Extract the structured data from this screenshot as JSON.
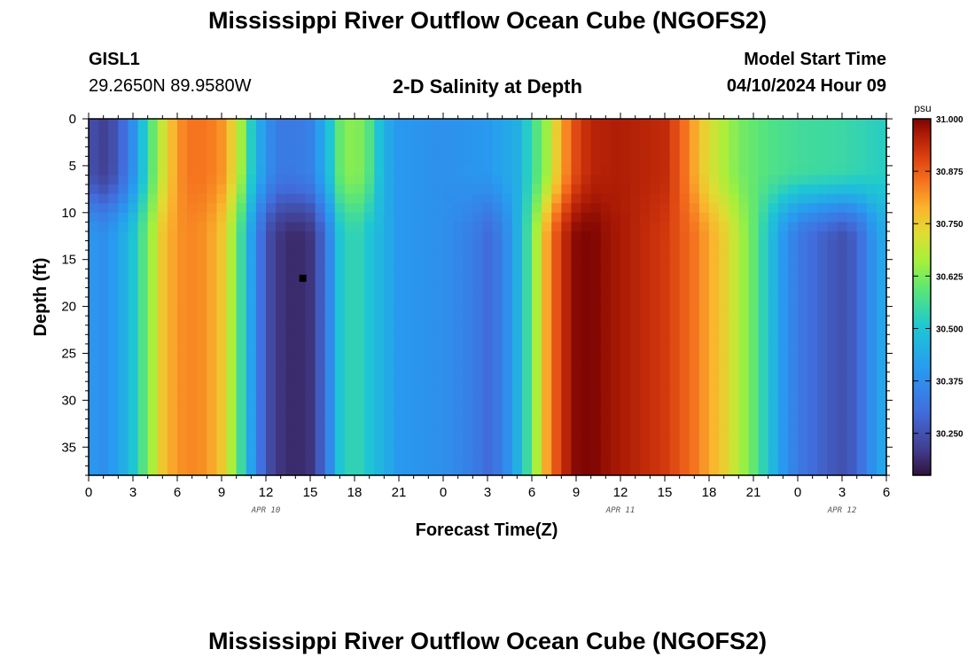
{
  "header": {
    "title": "Mississippi River Outflow Ocean Cube (NGOFS2)",
    "station": "GISL1",
    "coords": "29.2650N  89.9580W",
    "subtitle": "2-D Salinity at Depth",
    "model_start_label": "Model Start Time",
    "model_start_value": "04/10/2024 Hour 09"
  },
  "footer": {
    "title": "Mississippi River Outflow Ocean Cube (NGOFS2)"
  },
  "chart_data": {
    "type": "heatmap",
    "title": "2-D Salinity at Depth",
    "xlabel": "Forecast Time(Z)",
    "ylabel": "Depth (ft)",
    "x_range_hours": [
      0,
      54
    ],
    "ylim": [
      0,
      38
    ],
    "x_tick_labels": [
      "0",
      "3",
      "6",
      "9",
      "12",
      "15",
      "18",
      "21",
      "0",
      "3",
      "6",
      "9",
      "12",
      "15",
      "18",
      "21",
      "0",
      "3",
      "6"
    ],
    "x_tick_hours": [
      0,
      3,
      6,
      9,
      12,
      15,
      18,
      21,
      24,
      27,
      30,
      33,
      36,
      39,
      42,
      45,
      48,
      51,
      54
    ],
    "y_tick_labels": [
      "0",
      "5",
      "10",
      "15",
      "20",
      "25",
      "30",
      "35"
    ],
    "y_tick_values": [
      0,
      5,
      10,
      15,
      20,
      25,
      30,
      35
    ],
    "date_labels": [
      {
        "label": "APR 10",
        "hour": 12
      },
      {
        "label": "APR 11",
        "hour": 36
      },
      {
        "label": "APR 12",
        "hour": 51
      }
    ],
    "colorbar": {
      "unit": "psu",
      "min": 30.15,
      "max": 31.0,
      "tick_labels": [
        "31.000",
        "30.875",
        "30.750",
        "30.625",
        "30.500",
        "30.375",
        "30.250"
      ],
      "tick_values": [
        31.0,
        30.875,
        30.75,
        30.625,
        30.5,
        30.375,
        30.25
      ]
    },
    "marker": {
      "hour": 14.5,
      "depth": 17
    },
    "surface_profile": [
      {
        "hour": 0,
        "value": 30.25
      },
      {
        "hour": 1,
        "value": 30.22
      },
      {
        "hour": 2,
        "value": 30.26
      },
      {
        "hour": 3,
        "value": 30.38
      },
      {
        "hour": 4,
        "value": 30.55
      },
      {
        "hour": 5,
        "value": 30.7
      },
      {
        "hour": 6,
        "value": 30.82
      },
      {
        "hour": 7,
        "value": 30.85
      },
      {
        "hour": 8,
        "value": 30.85
      },
      {
        "hour": 9,
        "value": 30.82
      },
      {
        "hour": 10,
        "value": 30.72
      },
      {
        "hour": 11,
        "value": 30.52
      },
      {
        "hour": 12,
        "value": 30.38
      },
      {
        "hour": 13,
        "value": 30.33
      },
      {
        "hour": 14,
        "value": 30.33
      },
      {
        "hour": 15,
        "value": 30.35
      },
      {
        "hour": 16,
        "value": 30.45
      },
      {
        "hour": 17,
        "value": 30.6
      },
      {
        "hour": 18,
        "value": 30.65
      },
      {
        "hour": 19,
        "value": 30.58
      },
      {
        "hour": 20,
        "value": 30.45
      },
      {
        "hour": 21,
        "value": 30.4
      },
      {
        "hour": 24,
        "value": 30.38
      },
      {
        "hour": 27,
        "value": 30.4
      },
      {
        "hour": 29,
        "value": 30.45
      },
      {
        "hour": 30,
        "value": 30.55
      },
      {
        "hour": 31,
        "value": 30.65
      },
      {
        "hour": 32,
        "value": 30.8
      },
      {
        "hour": 33,
        "value": 30.9
      },
      {
        "hour": 34,
        "value": 30.95
      },
      {
        "hour": 36,
        "value": 30.96
      },
      {
        "hour": 39,
        "value": 30.94
      },
      {
        "hour": 40,
        "value": 30.88
      },
      {
        "hour": 41,
        "value": 30.8
      },
      {
        "hour": 42,
        "value": 30.72
      },
      {
        "hour": 44,
        "value": 30.62
      },
      {
        "hour": 46,
        "value": 30.58
      },
      {
        "hour": 48,
        "value": 30.56
      },
      {
        "hour": 51,
        "value": 30.55
      },
      {
        "hour": 54,
        "value": 30.52
      }
    ],
    "deep_profile": [
      {
        "hour": 0,
        "value": 30.4
      },
      {
        "hour": 1,
        "value": 30.38
      },
      {
        "hour": 2,
        "value": 30.42
      },
      {
        "hour": 3,
        "value": 30.5
      },
      {
        "hour": 4,
        "value": 30.62
      },
      {
        "hour": 5,
        "value": 30.76
      },
      {
        "hour": 6,
        "value": 30.82
      },
      {
        "hour": 7,
        "value": 30.83
      },
      {
        "hour": 8,
        "value": 30.82
      },
      {
        "hour": 9,
        "value": 30.76
      },
      {
        "hour": 10,
        "value": 30.62
      },
      {
        "hour": 11,
        "value": 30.42
      },
      {
        "hour": 12,
        "value": 30.25
      },
      {
        "hour": 13,
        "value": 30.2
      },
      {
        "hour": 14,
        "value": 30.18
      },
      {
        "hour": 15,
        "value": 30.2
      },
      {
        "hour": 16,
        "value": 30.3
      },
      {
        "hour": 17,
        "value": 30.5
      },
      {
        "hour": 18,
        "value": 30.55
      },
      {
        "hour": 19,
        "value": 30.5
      },
      {
        "hour": 20,
        "value": 30.45
      },
      {
        "hour": 21,
        "value": 30.4
      },
      {
        "hour": 24,
        "value": 30.38
      },
      {
        "hour": 26,
        "value": 30.34
      },
      {
        "hour": 27,
        "value": 30.3
      },
      {
        "hour": 28,
        "value": 30.34
      },
      {
        "hour": 29,
        "value": 30.45
      },
      {
        "hour": 30,
        "value": 30.6
      },
      {
        "hour": 31,
        "value": 30.8
      },
      {
        "hour": 32,
        "value": 30.93
      },
      {
        "hour": 33,
        "value": 30.99
      },
      {
        "hour": 34,
        "value": 31.0
      },
      {
        "hour": 35,
        "value": 30.98
      },
      {
        "hour": 37,
        "value": 30.95
      },
      {
        "hour": 39,
        "value": 30.92
      },
      {
        "hour": 41,
        "value": 30.85
      },
      {
        "hour": 43,
        "value": 30.75
      },
      {
        "hour": 45,
        "value": 30.6
      },
      {
        "hour": 47,
        "value": 30.4
      },
      {
        "hour": 48,
        "value": 30.33
      },
      {
        "hour": 50,
        "value": 30.27
      },
      {
        "hour": 51,
        "value": 30.25
      },
      {
        "hour": 52,
        "value": 30.28
      },
      {
        "hour": 53,
        "value": 30.38
      },
      {
        "hour": 54,
        "value": 30.45
      }
    ]
  }
}
